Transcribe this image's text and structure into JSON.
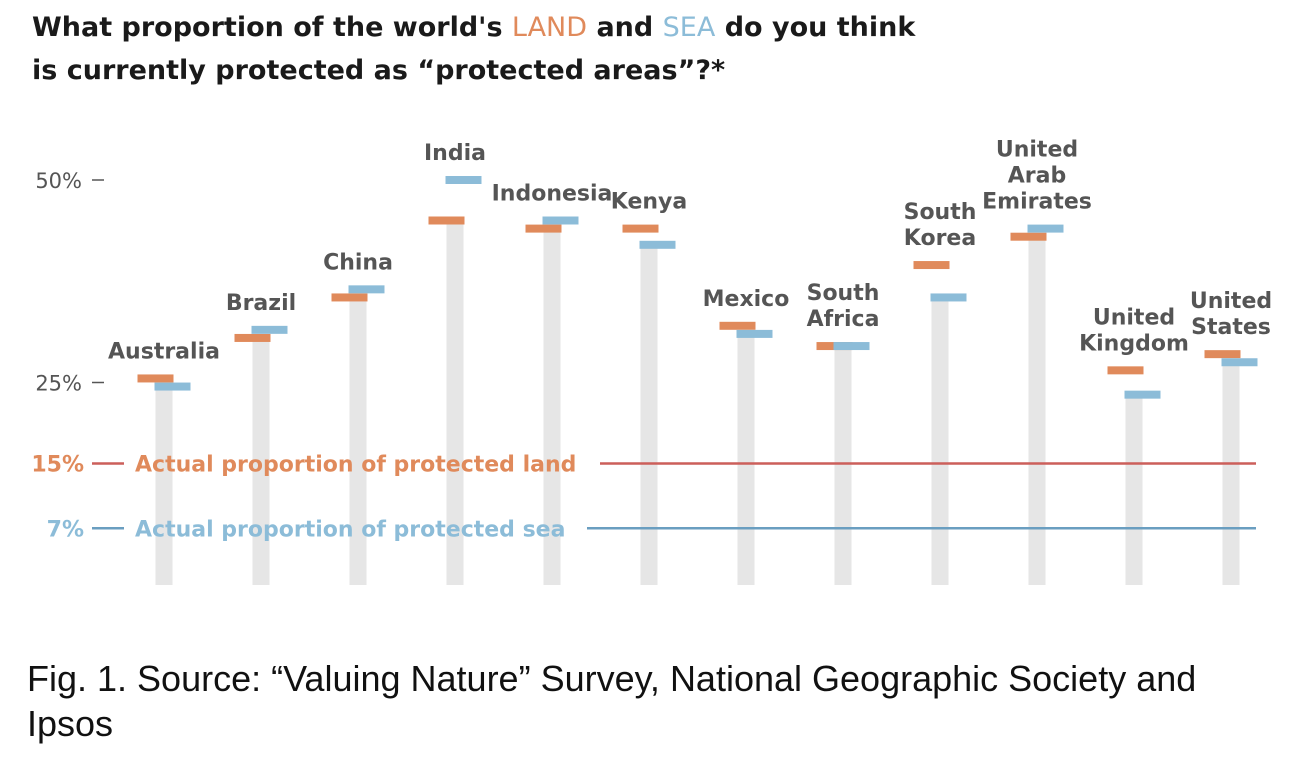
{
  "title": {
    "prefix": "What proportion of the world's ",
    "land": "LAND",
    "middle": " and ",
    "sea": "SEA",
    "suffix": " do you think",
    "line2": "is currently protected as “protected areas”?*"
  },
  "caption": "Fig. 1. Source: “Valuing Nature” Survey, National Geographic Society and Ipsos",
  "colors": {
    "land": "#e08a5b",
    "sea": "#8cbcd8",
    "land_line": "#cc5f5a",
    "sea_line": "#6a9ec0",
    "bar": "#e6e6e6",
    "axis_text": "#555555",
    "label_text": "#555555"
  },
  "chart_data": {
    "type": "bar",
    "categories": [
      [
        "Australia"
      ],
      [
        "Brazil"
      ],
      [
        "China"
      ],
      [
        "India"
      ],
      [
        "Indonesia"
      ],
      [
        "Kenya"
      ],
      [
        "Mexico"
      ],
      [
        "South",
        "Africa"
      ],
      [
        "South",
        "Korea"
      ],
      [
        "United",
        "Arab",
        "Emirates"
      ],
      [
        "United",
        "Kingdom"
      ],
      [
        "United",
        "States"
      ]
    ],
    "series": [
      {
        "name": "LAND",
        "values": [
          25.5,
          30.5,
          35.5,
          45,
          44,
          44,
          32,
          29.5,
          39.5,
          43,
          26.5,
          28.5
        ]
      },
      {
        "name": "SEA",
        "values": [
          24.5,
          31.5,
          36.5,
          50,
          45,
          42,
          31,
          29.5,
          35.5,
          44,
          23.5,
          27.5
        ]
      }
    ],
    "yticks": [
      {
        "value": 50,
        "label": "50%"
      },
      {
        "value": 25,
        "label": "25%"
      }
    ],
    "reference_lines": [
      {
        "value": 15,
        "label": "15%",
        "text": "Actual proportion of protected land",
        "series": "land"
      },
      {
        "value": 7,
        "label": "7%",
        "text": "Actual proportion of protected sea",
        "series": "sea"
      }
    ],
    "ylim": [
      0,
      55
    ]
  }
}
